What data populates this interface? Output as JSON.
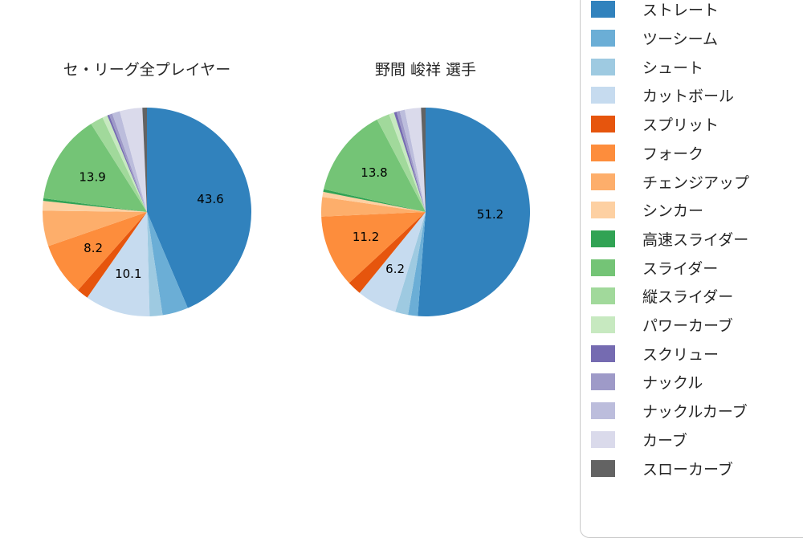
{
  "legend": {
    "items": [
      {
        "label": "ストレート",
        "color": "#3182bd"
      },
      {
        "label": "ツーシーム",
        "color": "#6baed6"
      },
      {
        "label": "シュート",
        "color": "#9ecae1"
      },
      {
        "label": "カットボール",
        "color": "#c6dbef"
      },
      {
        "label": "スプリット",
        "color": "#e6550d"
      },
      {
        "label": "フォーク",
        "color": "#fd8d3c"
      },
      {
        "label": "チェンジアップ",
        "color": "#fdae6b"
      },
      {
        "label": "シンカー",
        "color": "#fdd0a2"
      },
      {
        "label": "高速スライダー",
        "color": "#31a354"
      },
      {
        "label": "スライダー",
        "color": "#74c476"
      },
      {
        "label": "縦スライダー",
        "color": "#a1d99b"
      },
      {
        "label": "パワーカーブ",
        "color": "#c7e9c0"
      },
      {
        "label": "スクリュー",
        "color": "#756bb1"
      },
      {
        "label": "ナックル",
        "color": "#9e9ac8"
      },
      {
        "label": "ナックルカーブ",
        "color": "#bcbddc"
      },
      {
        "label": "カーブ",
        "color": "#dadaeb"
      },
      {
        "label": "スローカーブ",
        "color": "#636363"
      }
    ]
  },
  "chart_data": [
    {
      "type": "pie",
      "title": "セ・リーグ全プレイヤー",
      "categories": [
        "ストレート",
        "ツーシーム",
        "シュート",
        "カットボール",
        "スプリット",
        "フォーク",
        "チェンジアップ",
        "シンカー",
        "高速スライダー",
        "スライダー",
        "縦スライダー",
        "パワーカーブ",
        "スクリュー",
        "ナックル",
        "ナックルカーブ",
        "カーブ",
        "スローカーブ"
      ],
      "values": [
        43.6,
        4.0,
        2.0,
        10.1,
        1.8,
        8.2,
        5.5,
        1.5,
        0.4,
        13.9,
        2.0,
        0.8,
        0.3,
        0.5,
        1.2,
        3.5,
        0.7
      ],
      "colors": [
        "#3182bd",
        "#6baed6",
        "#9ecae1",
        "#c6dbef",
        "#e6550d",
        "#fd8d3c",
        "#fdae6b",
        "#fdd0a2",
        "#31a354",
        "#74c476",
        "#a1d99b",
        "#c7e9c0",
        "#756bb1",
        "#9e9ac8",
        "#bcbddc",
        "#dadaeb",
        "#636363"
      ],
      "visible_slice_labels": [
        "43.6",
        "10.1",
        "8.2",
        "13.9"
      ],
      "start_angle_deg": 90,
      "direction": "clockwise",
      "label_threshold": 6,
      "legend_position": "right"
    },
    {
      "type": "pie",
      "title": "野間 峻祥 選手",
      "categories": [
        "ストレート",
        "ツーシーム",
        "シュート",
        "カットボール",
        "スプリット",
        "フォーク",
        "チェンジアップ",
        "シンカー",
        "高速スライダー",
        "スライダー",
        "縦スライダー",
        "パワーカーブ",
        "スクリュー",
        "ナックル",
        "ナックルカーブ",
        "カーブ",
        "スローカーブ"
      ],
      "values": [
        51.2,
        1.5,
        2.0,
        6.2,
        2.2,
        11.2,
        3.0,
        0.8,
        0.4,
        13.8,
        2.0,
        0.8,
        0.4,
        0.5,
        0.8,
        2.5,
        0.7
      ],
      "colors": [
        "#3182bd",
        "#6baed6",
        "#9ecae1",
        "#c6dbef",
        "#e6550d",
        "#fd8d3c",
        "#fdae6b",
        "#fdd0a2",
        "#31a354",
        "#74c476",
        "#a1d99b",
        "#c7e9c0",
        "#756bb1",
        "#9e9ac8",
        "#bcbddc",
        "#dadaeb",
        "#636363"
      ],
      "visible_slice_labels": [
        "51.2",
        "6.2",
        "11.2",
        "13.8"
      ],
      "start_angle_deg": 90,
      "direction": "clockwise",
      "label_threshold": 6,
      "legend_position": "right"
    }
  ]
}
